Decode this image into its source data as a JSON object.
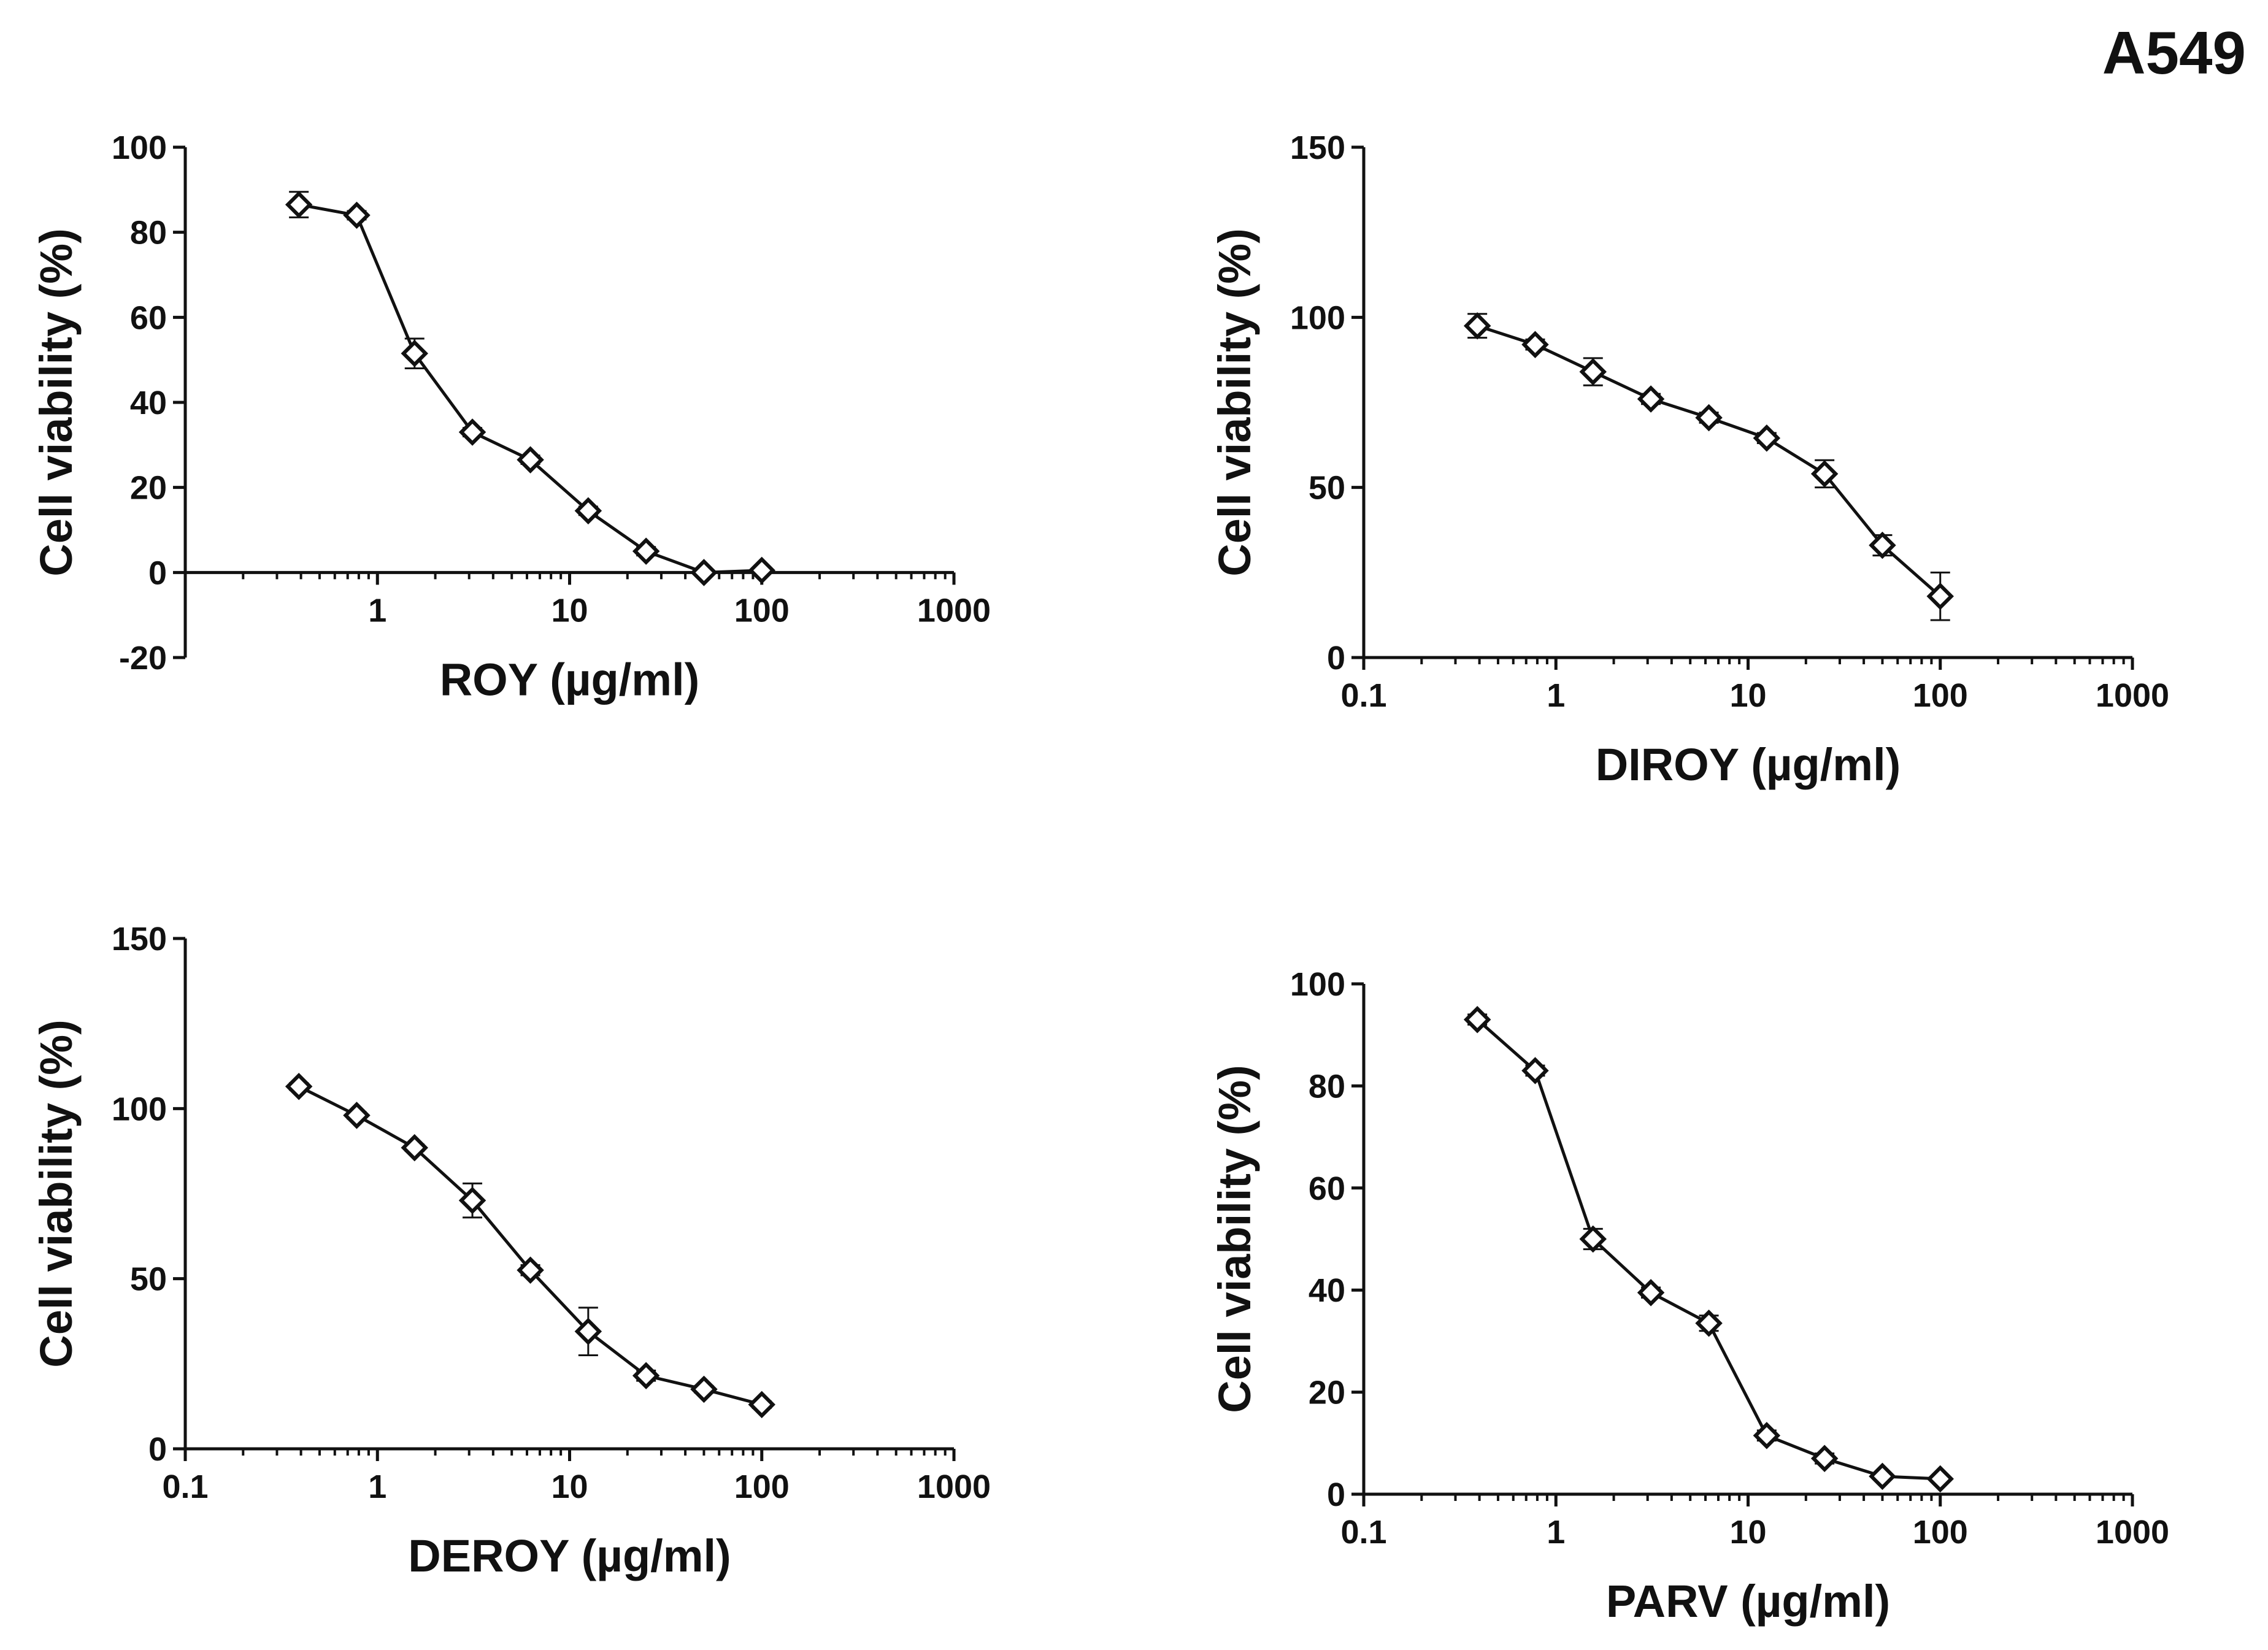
{
  "figure_label": "A549",
  "colors": {
    "ink": "#111111",
    "marker_fill": "#ffffff",
    "background": "#ffffff"
  },
  "chart_data": [
    {
      "type": "line",
      "title": "",
      "xlabel": "ROY (µg/ml)",
      "ylabel": "Cell viability (%)",
      "xscale": "log",
      "xlim": [
        0.1,
        1000
      ],
      "ylim": [
        -20,
        100
      ],
      "x_ticks": [
        1,
        10,
        100,
        1000
      ],
      "x_tick_labels": [
        "1",
        "10",
        "100",
        "1000"
      ],
      "y_ticks": [
        -20,
        0,
        20,
        40,
        60,
        80,
        100
      ],
      "y_tick_labels": [
        "-20",
        "0",
        "20",
        "40",
        "60",
        "80",
        "100"
      ],
      "x_axis_at_y": 0,
      "marker": "diamond",
      "series": [
        {
          "name": "ROY",
          "x": [
            0.39,
            0.78,
            1.56,
            3.12,
            6.25,
            12.5,
            25,
            50,
            100
          ],
          "y": [
            86.5,
            84,
            51.5,
            33,
            26.5,
            14.5,
            5,
            0,
            0.5
          ],
          "err": [
            3,
            1,
            3.5,
            1,
            1,
            1,
            1,
            0.5,
            0.5
          ]
        }
      ]
    },
    {
      "type": "line",
      "title": "",
      "xlabel": "DIROY (µg/ml)",
      "ylabel": "Cell viability (%)",
      "xscale": "log",
      "xlim": [
        0.1,
        1000
      ],
      "ylim": [
        0,
        150
      ],
      "x_ticks": [
        0.1,
        1,
        10,
        100,
        1000
      ],
      "x_tick_labels": [
        "0.1",
        "1",
        "10",
        "100",
        "1000"
      ],
      "y_ticks": [
        0,
        50,
        100,
        150
      ],
      "y_tick_labels": [
        "0",
        "50",
        "100",
        "150"
      ],
      "x_axis_at_y": 0,
      "marker": "diamond",
      "series": [
        {
          "name": "DIROY",
          "x": [
            0.39,
            0.78,
            1.56,
            3.12,
            6.25,
            12.5,
            25,
            50,
            100
          ],
          "y": [
            97.5,
            92,
            84,
            76,
            70.5,
            64.5,
            54,
            33,
            18
          ],
          "err": [
            3.5,
            1.5,
            4,
            1.5,
            1.5,
            1.5,
            4,
            3,
            7
          ]
        }
      ]
    },
    {
      "type": "line",
      "title": "",
      "xlabel": "DEROY (µg/ml)",
      "ylabel": "Cell viability (%)",
      "xscale": "log",
      "xlim": [
        0.1,
        1000
      ],
      "ylim": [
        0,
        150
      ],
      "x_ticks": [
        0.1,
        1,
        10,
        100,
        1000
      ],
      "x_tick_labels": [
        "0.1",
        "1",
        "10",
        "100",
        "1000"
      ],
      "y_ticks": [
        0,
        50,
        100,
        150
      ],
      "y_tick_labels": [
        "0",
        "50",
        "100",
        "150"
      ],
      "x_axis_at_y": 0,
      "marker": "diamond",
      "series": [
        {
          "name": "DEROY",
          "x": [
            0.39,
            0.78,
            1.56,
            3.12,
            6.25,
            12.5,
            25,
            50,
            100
          ],
          "y": [
            106.5,
            98,
            88.5,
            73,
            52.5,
            34.5,
            21.5,
            17.5,
            13
          ],
          "err": [
            1,
            1,
            1,
            5,
            1.5,
            7,
            1.5,
            1,
            1
          ]
        }
      ]
    },
    {
      "type": "line",
      "title": "",
      "xlabel": "PARV (µg/ml)",
      "ylabel": "Cell viability (%)",
      "xscale": "log",
      "xlim": [
        0.1,
        1000
      ],
      "ylim": [
        0,
        100
      ],
      "x_ticks": [
        0.1,
        1,
        10,
        100,
        1000
      ],
      "x_tick_labels": [
        "0.1",
        "1",
        "10",
        "100",
        "1000"
      ],
      "y_ticks": [
        0,
        20,
        40,
        60,
        80,
        100
      ],
      "y_tick_labels": [
        "0",
        "20",
        "40",
        "60",
        "80",
        "100"
      ],
      "x_axis_at_y": 0,
      "marker": "diamond",
      "series": [
        {
          "name": "PARV",
          "x": [
            0.39,
            0.78,
            1.56,
            3.12,
            6.25,
            12.5,
            25,
            50,
            100
          ],
          "y": [
            93,
            83,
            50,
            39.5,
            33.5,
            11.5,
            7,
            3.5,
            3
          ],
          "err": [
            1,
            1,
            2,
            1,
            1.5,
            1,
            1,
            0.5,
            0.5
          ]
        }
      ]
    }
  ]
}
